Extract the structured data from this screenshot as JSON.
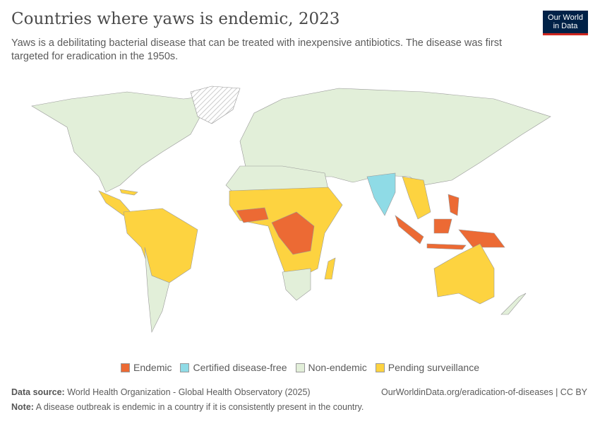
{
  "header": {
    "title": "Countries where yaws is endemic, 2023",
    "subtitle": "Yaws is a debilitating bacterial disease that can be treated with inexpensive antibiotics. The disease was first targeted for eradication in the 1950s.",
    "logo": "Our World in Data"
  },
  "colors": {
    "endemic": "#ec6a34",
    "certified": "#8fdbe6",
    "non_endemic": "#e2efd9",
    "pending": "#fdd340",
    "no_data": "hatched"
  },
  "legend": [
    {
      "label": "Endemic",
      "color": "#ec6a34"
    },
    {
      "label": "Certified disease-free",
      "color": "#8fdbe6"
    },
    {
      "label": "Non-endemic",
      "color": "#e2efd9"
    },
    {
      "label": "Pending surveillance",
      "color": "#fdd340"
    }
  ],
  "footer": {
    "source_label": "Data source:",
    "source": "World Health Organization - Global Health Observatory (2025)",
    "url": "OurWorldinData.org/eradication-of-diseases | CC BY",
    "note_label": "Note:",
    "note": "A disease outbreak is endemic in a country if it is consistently present in the country."
  }
}
